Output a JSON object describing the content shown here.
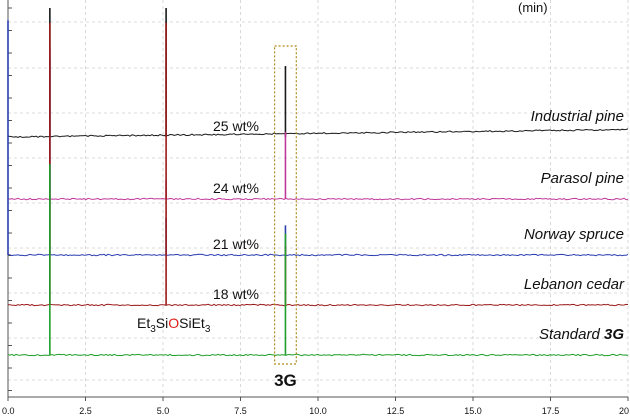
{
  "header_fragment": "(min)",
  "chart_data": {
    "type": "line",
    "title": "",
    "xlabel": "",
    "ylabel": "",
    "xlim": [
      0,
      20
    ],
    "x_ticks": [
      "0.0",
      "2.5",
      "5.0",
      "7.5",
      "10.0",
      "12.5",
      "15.0",
      "17.5",
      "20"
    ],
    "grid": true,
    "series": [
      {
        "name": "Industrial pine",
        "wt_label": "25 wt%",
        "color": "#1a1a1a",
        "points": [
          [
            1.35,
            1.0
          ],
          [
            5.1,
            1.0
          ],
          [
            8.95,
            0.55
          ]
        ]
      },
      {
        "name": "Parasol pine",
        "wt_label": "24 wt%",
        "color": "#c0399a",
        "points": [
          [
            1.35,
            0.8
          ],
          [
            5.1,
            0.1
          ],
          [
            8.95,
            0.35
          ]
        ]
      },
      {
        "name": "Norway spruce",
        "wt_label": "21 wt%",
        "color": "#2a3fb0",
        "points": [
          [
            0.0,
            0.95
          ],
          [
            1.35,
            0.8
          ],
          [
            5.1,
            0.15
          ],
          [
            8.95,
            0.12
          ]
        ]
      },
      {
        "name": "Lebanon cedar",
        "wt_label": "18 wt%",
        "color": "#9b1b1b",
        "points": [
          [
            1.35,
            0.95
          ],
          [
            5.1,
            0.95
          ],
          [
            8.95,
            0.2
          ]
        ]
      },
      {
        "name": "Standard 3G",
        "wt_label": "",
        "color": "#1f9e2a",
        "points": [
          [
            1.35,
            0.55
          ],
          [
            8.95,
            0.35
          ]
        ]
      }
    ],
    "annotations": {
      "siloxane": {
        "pre": "Et",
        "sub1": "3",
        "mid": "Si",
        "o": "O",
        "post": "SiEt",
        "sub2": "3",
        "x": 5.1
      },
      "peak": {
        "label": "3G",
        "x_from": 8.6,
        "x_to": 9.3
      },
      "standard_prefix": "Standard ",
      "standard_bold": "3G"
    }
  }
}
